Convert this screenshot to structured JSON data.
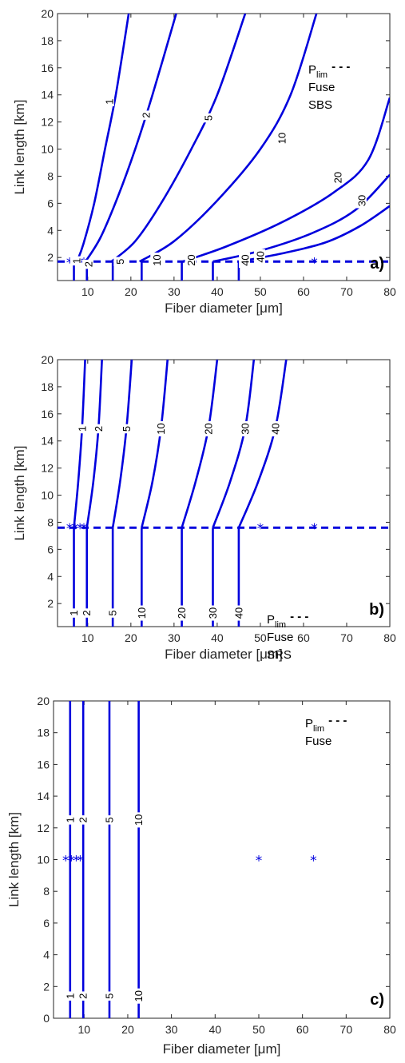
{
  "colors": {
    "curve": "#0000dd",
    "axis": "#262626",
    "background": "#ffffff"
  },
  "chart_data": [
    {
      "type": "contour",
      "panel_label": "a)",
      "xlabel_pre": "Fiber diameter [",
      "xlabel_mu": "μ",
      "xlabel_post": "m]",
      "ylabel": "Link length [km]",
      "xlim": [
        3,
        80
      ],
      "ylim": [
        0.3,
        20
      ],
      "xticks": [
        10,
        20,
        30,
        40,
        50,
        60,
        70,
        80
      ],
      "yticks": [
        2,
        4,
        6,
        8,
        10,
        12,
        14,
        16,
        18,
        20
      ],
      "legend": {
        "placement": "upper-right",
        "p_main": "P",
        "p_sub": "lim",
        "dash": "- - -",
        "items": [
          "Fuse",
          "SBS"
        ]
      },
      "threshold_y": 1.7,
      "markers_x": [
        5.8,
        7.1,
        8.2,
        9.1,
        50,
        62.5
      ],
      "fuse_x": [
        6.8,
        9.8,
        15.8,
        22.5,
        31.8,
        39,
        45
      ],
      "contours": [
        {
          "level": "1",
          "points": [
            [
              7.5,
              1.7
            ],
            [
              9,
              3
            ],
            [
              11.5,
              6
            ],
            [
              14,
              10
            ],
            [
              16.5,
              14
            ],
            [
              19.5,
              20
            ]
          ],
          "label_at": [
            15,
            13.5
          ]
        },
        {
          "level": "2",
          "points": [
            [
              9.5,
              1.7
            ],
            [
              13,
              3.5
            ],
            [
              17,
              6.5
            ],
            [
              21,
              10
            ],
            [
              25,
              14
            ],
            [
              30.5,
              20
            ]
          ],
          "label_at": [
            23.5,
            12.5
          ]
        },
        {
          "level": "5",
          "points": [
            [
              15.5,
              1.7
            ],
            [
              21,
              3.2
            ],
            [
              27,
              6
            ],
            [
              34,
              10
            ],
            [
              40,
              14
            ],
            [
              46.5,
              20
            ]
          ],
          "label_at": [
            38,
            12.3
          ]
        },
        {
          "level": "10",
          "points": [
            [
              22,
              1.7
            ],
            [
              30,
              3.2
            ],
            [
              40,
              6.2
            ],
            [
              50,
              10
            ],
            [
              57,
              14
            ],
            [
              63,
              20
            ]
          ],
          "label_at": [
            55,
            10.8
          ]
        },
        {
          "level": "20",
          "points": [
            [
              32,
              1.7
            ],
            [
              42,
              2.8
            ],
            [
              55,
              4.6
            ],
            [
              67,
              6.8
            ],
            [
              75,
              9.2
            ],
            [
              80,
              13.8
            ]
          ],
          "label_at": [
            68,
            7.9
          ]
        },
        {
          "level": "30",
          "points": [
            [
              39,
              1.7
            ],
            [
              50,
              2.5
            ],
            [
              62,
              3.8
            ],
            [
              72,
              5.5
            ],
            [
              80,
              8.1
            ]
          ],
          "label_at": [
            73.5,
            6.2
          ]
        },
        {
          "level": "40",
          "points": [
            [
              45,
              1.7
            ],
            [
              55,
              2.3
            ],
            [
              65,
              3.1
            ],
            [
              73,
              4.3
            ],
            [
              80,
              5.8
            ]
          ],
          "label_at": [
            50,
            2.05
          ]
        }
      ],
      "bottom_labels": [
        {
          "text": "1",
          "at": [
            7.4,
            1.75
          ]
        },
        {
          "text": "2",
          "at": [
            10.2,
            1.5
          ]
        },
        {
          "text": "5",
          "at": [
            17.5,
            1.7
          ]
        },
        {
          "text": "10",
          "at": [
            26,
            1.8
          ]
        },
        {
          "text": "20",
          "at": [
            34,
            1.8
          ]
        },
        {
          "text": "40",
          "at": [
            46.5,
            1.8
          ]
        }
      ]
    },
    {
      "type": "contour",
      "panel_label": "b)",
      "xlabel_pre": "Fiber diameter [",
      "xlabel_mu": "μ",
      "xlabel_post": "m]",
      "ylabel": "Link length [km]",
      "xlim": [
        3,
        80
      ],
      "ylim": [
        0.3,
        20
      ],
      "xticks": [
        10,
        20,
        30,
        40,
        50,
        60,
        70,
        80
      ],
      "yticks": [
        2,
        4,
        6,
        8,
        10,
        12,
        14,
        16,
        18,
        20
      ],
      "legend": {
        "placement": "center-right",
        "p_main": "P",
        "p_sub": "lim",
        "dash": "- - -",
        "items": [
          "Fuse",
          "SRS"
        ]
      },
      "threshold_y": 7.6,
      "markers_x": [
        5.8,
        7.1,
        8.2,
        9.1,
        50,
        62.5
      ],
      "fuse_x": [
        6.8,
        9.8,
        15.8,
        22.5,
        31.8,
        39,
        45
      ],
      "contours": [
        {
          "level": "1",
          "points": [
            [
              6.8,
              7.6
            ],
            [
              7.8,
              11
            ],
            [
              8.7,
              15
            ],
            [
              9.4,
              20
            ]
          ],
          "label_at": [
            8.7,
            14.9
          ]
        },
        {
          "level": "2",
          "points": [
            [
              9.8,
              7.6
            ],
            [
              11.3,
              11
            ],
            [
              12.5,
              15
            ],
            [
              13.3,
              20
            ]
          ],
          "label_at": [
            12.5,
            14.9
          ]
        },
        {
          "level": "5",
          "points": [
            [
              15.8,
              7.6
            ],
            [
              17.5,
              11
            ],
            [
              19,
              15
            ],
            [
              20.2,
              20
            ]
          ],
          "label_at": [
            19,
            14.9
          ]
        },
        {
          "level": "10",
          "points": [
            [
              22.5,
              7.6
            ],
            [
              25,
              11
            ],
            [
              27,
              15
            ],
            [
              28.5,
              20
            ]
          ],
          "label_at": [
            27,
            14.9
          ]
        },
        {
          "level": "20",
          "points": [
            [
              31.8,
              7.6
            ],
            [
              35,
              11
            ],
            [
              38,
              15
            ],
            [
              40,
              20
            ]
          ],
          "label_at": [
            38,
            14.9
          ]
        },
        {
          "level": "30",
          "points": [
            [
              39,
              7.6
            ],
            [
              43,
              11
            ],
            [
              46.5,
              15
            ],
            [
              48.5,
              20
            ]
          ],
          "label_at": [
            46.5,
            14.9
          ]
        },
        {
          "level": "40",
          "points": [
            [
              45,
              7.6
            ],
            [
              49.5,
              11
            ],
            [
              53.5,
              15
            ],
            [
              56,
              20
            ]
          ],
          "label_at": [
            53.5,
            14.9
          ]
        }
      ],
      "bottom_labels": [
        {
          "text": "1",
          "at": [
            6.8,
            1.3
          ]
        },
        {
          "text": "2",
          "at": [
            9.8,
            1.3
          ]
        },
        {
          "text": "5",
          "at": [
            15.8,
            1.3
          ]
        },
        {
          "text": "10",
          "at": [
            22.5,
            1.3
          ]
        },
        {
          "text": "20",
          "at": [
            31.8,
            1.3
          ]
        },
        {
          "text": "30",
          "at": [
            39,
            1.3
          ]
        },
        {
          "text": "40",
          "at": [
            45,
            1.3
          ]
        }
      ]
    },
    {
      "type": "contour",
      "panel_label": "c)",
      "xlabel_pre": "Fiber diameter [",
      "xlabel_mu": "μ",
      "xlabel_post": "m]",
      "ylabel": "Link length [km]",
      "xlim": [
        3,
        80
      ],
      "ylim": [
        0,
        20
      ],
      "xticks": [
        10,
        20,
        30,
        40,
        50,
        60,
        70,
        80
      ],
      "yticks": [
        0,
        2,
        4,
        6,
        8,
        10,
        12,
        14,
        16,
        18,
        20
      ],
      "legend": {
        "placement": "upper-right",
        "p_main": "P",
        "p_sub": "lim",
        "dash": "- - -",
        "items": [
          "Fuse"
        ]
      },
      "threshold_y": null,
      "markers_y": 10,
      "markers_x": [
        5.8,
        7.1,
        8.2,
        9.1,
        50,
        62.5
      ],
      "fuse_x": [
        6.8,
        9.8,
        15.8,
        22.5
      ],
      "contours": [],
      "mid_labels": [
        {
          "text": "1",
          "at": [
            6.8,
            12.5
          ]
        },
        {
          "text": "2",
          "at": [
            9.8,
            12.5
          ]
        },
        {
          "text": "5",
          "at": [
            15.8,
            12.5
          ]
        },
        {
          "text": "10",
          "at": [
            22.5,
            12.5
          ]
        }
      ],
      "bottom_labels": [
        {
          "text": "1",
          "at": [
            6.8,
            1.4
          ]
        },
        {
          "text": "2",
          "at": [
            9.8,
            1.4
          ]
        },
        {
          "text": "5",
          "at": [
            15.8,
            1.4
          ]
        },
        {
          "text": "10",
          "at": [
            22.5,
            1.4
          ]
        }
      ]
    }
  ]
}
